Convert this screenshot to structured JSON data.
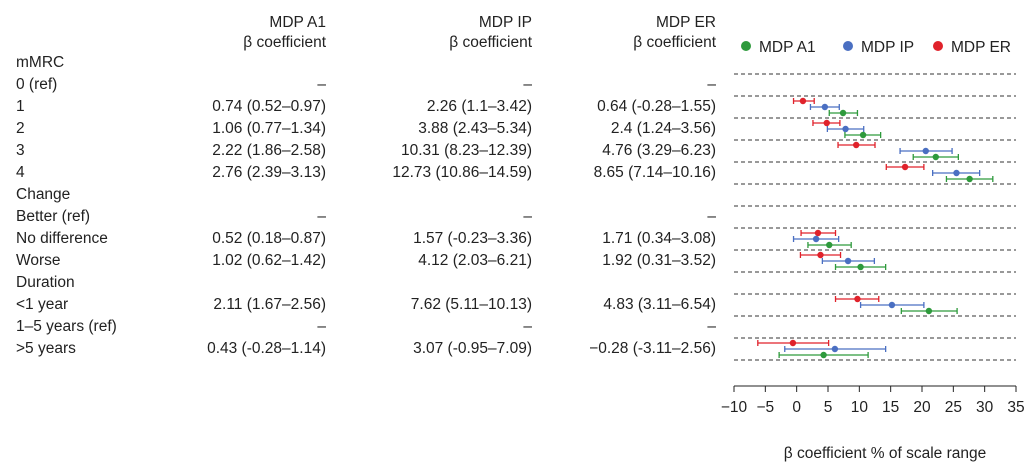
{
  "table": {
    "columns": [
      {
        "line1": "MDP A1",
        "line2": "β coefficient"
      },
      {
        "line1": "MDP IP",
        "line2": "β coefficient"
      },
      {
        "line1": "MDP ER",
        "line2": "β coefficient"
      }
    ],
    "rows": [
      {
        "label": "mMRC",
        "cells": [
          "",
          "",
          ""
        ]
      },
      {
        "label": "0 (ref)",
        "cells": [
          "–",
          "–",
          "–"
        ]
      },
      {
        "label": "1",
        "cells": [
          "0.74 (0.52–0.97)",
          "2.26 (1.1–3.42)",
          "0.64 (-0.28–1.55)"
        ]
      },
      {
        "label": "2",
        "cells": [
          "1.06 (0.77–1.34)",
          "3.88 (2.43–5.34)",
          "2.4 (1.24–3.56)"
        ]
      },
      {
        "label": "3",
        "cells": [
          "2.22 (1.86–2.58)",
          "10.31 (8.23–12.39)",
          "4.76 (3.29–6.23)"
        ]
      },
      {
        "label": "4",
        "cells": [
          "2.76 (2.39–3.13)",
          "12.73 (10.86–14.59)",
          "8.65 (7.14–10.16)"
        ]
      },
      {
        "label": "Change",
        "cells": [
          "",
          "",
          ""
        ]
      },
      {
        "label": "Better (ref)",
        "cells": [
          "–",
          "–",
          "–"
        ]
      },
      {
        "label": "No difference",
        "cells": [
          "0.52 (0.18–0.87)",
          "1.57 (-0.23–3.36)",
          "1.71 (0.34–3.08)"
        ]
      },
      {
        "label": "Worse",
        "cells": [
          "1.02 (0.62–1.42)",
          "4.12 (2.03–6.21)",
          "1.92 (0.31–3.52)"
        ]
      },
      {
        "label": "Duration",
        "cells": [
          "",
          "",
          ""
        ]
      },
      {
        "label": "<1 year",
        "cells": [
          "2.11 (1.67–2.56)",
          "7.62 (5.11–10.13)",
          "4.83 (3.11–6.54)"
        ]
      },
      {
        "label": "1–5 years (ref)",
        "cells": [
          "–",
          "–",
          "–"
        ]
      },
      {
        "label": ">5 years",
        "cells": [
          "0.43 (-0.28–1.14)",
          "3.07 (-0.95–7.09)",
          "−0.28 (-3.11–2.56)"
        ]
      }
    ]
  },
  "chart_data": {
    "type": "scatter",
    "subtype": "forest-plot",
    "xlabel": "β coefficient % of scale range",
    "xlim": [
      -10,
      35
    ],
    "xticks": [
      -10,
      -5,
      0,
      5,
      10,
      15,
      20,
      25,
      30,
      35
    ],
    "xtick_labels": [
      "−10",
      "−5",
      "0",
      "5",
      "10",
      "15",
      "20",
      "25",
      "30",
      "35"
    ],
    "legend": {
      "position": "top",
      "entries": [
        "MDP A1",
        "MDP IP",
        "MDP ER"
      ]
    },
    "colors": {
      "MDP A1": "#2e9a3c",
      "MDP IP": "#4a6fc2",
      "MDP ER": "#e0222b"
    },
    "series": [
      {
        "name": "MDP ER",
        "points": [
          {
            "row": "1",
            "value": 1.0,
            "low": -0.5,
            "high": 2.8
          },
          {
            "row": "2",
            "value": 4.8,
            "low": 2.6,
            "high": 6.9
          },
          {
            "row": "3",
            "value": 9.5,
            "low": 6.6,
            "high": 12.5
          },
          {
            "row": "4",
            "value": 17.3,
            "low": 14.3,
            "high": 20.3
          },
          {
            "row": "No difference",
            "value": 3.4,
            "low": 0.7,
            "high": 6.2
          },
          {
            "row": "Worse",
            "value": 3.8,
            "low": 0.6,
            "high": 7.0
          },
          {
            "row": "<1 year",
            "value": 9.7,
            "low": 6.2,
            "high": 13.1
          },
          {
            "row": ">5 years",
            "value": -0.6,
            "low": -6.2,
            "high": 5.1
          }
        ]
      },
      {
        "name": "MDP IP",
        "points": [
          {
            "row": "1",
            "value": 4.5,
            "low": 2.2,
            "high": 6.8
          },
          {
            "row": "2",
            "value": 7.8,
            "low": 4.9,
            "high": 10.7
          },
          {
            "row": "3",
            "value": 20.6,
            "low": 16.5,
            "high": 24.8
          },
          {
            "row": "4",
            "value": 25.5,
            "low": 21.7,
            "high": 29.2
          },
          {
            "row": "No difference",
            "value": 3.1,
            "low": -0.5,
            "high": 6.7
          },
          {
            "row": "Worse",
            "value": 8.2,
            "low": 4.1,
            "high": 12.4
          },
          {
            "row": "<1 year",
            "value": 15.2,
            "low": 10.2,
            "high": 20.3
          },
          {
            "row": ">5 years",
            "value": 6.1,
            "low": -1.9,
            "high": 14.2
          }
        ]
      },
      {
        "name": "MDP A1",
        "points": [
          {
            "row": "1",
            "value": 7.4,
            "low": 5.2,
            "high": 9.7
          },
          {
            "row": "2",
            "value": 10.6,
            "low": 7.7,
            "high": 13.4
          },
          {
            "row": "3",
            "value": 22.2,
            "low": 18.6,
            "high": 25.8
          },
          {
            "row": "4",
            "value": 27.6,
            "low": 23.9,
            "high": 31.3
          },
          {
            "row": "No difference",
            "value": 5.2,
            "low": 1.8,
            "high": 8.7
          },
          {
            "row": "Worse",
            "value": 10.2,
            "low": 6.2,
            "high": 14.2
          },
          {
            "row": "<1 year",
            "value": 21.1,
            "low": 16.7,
            "high": 25.6
          },
          {
            "row": ">5 years",
            "value": 4.3,
            "low": -2.8,
            "high": 11.4
          }
        ]
      }
    ]
  }
}
